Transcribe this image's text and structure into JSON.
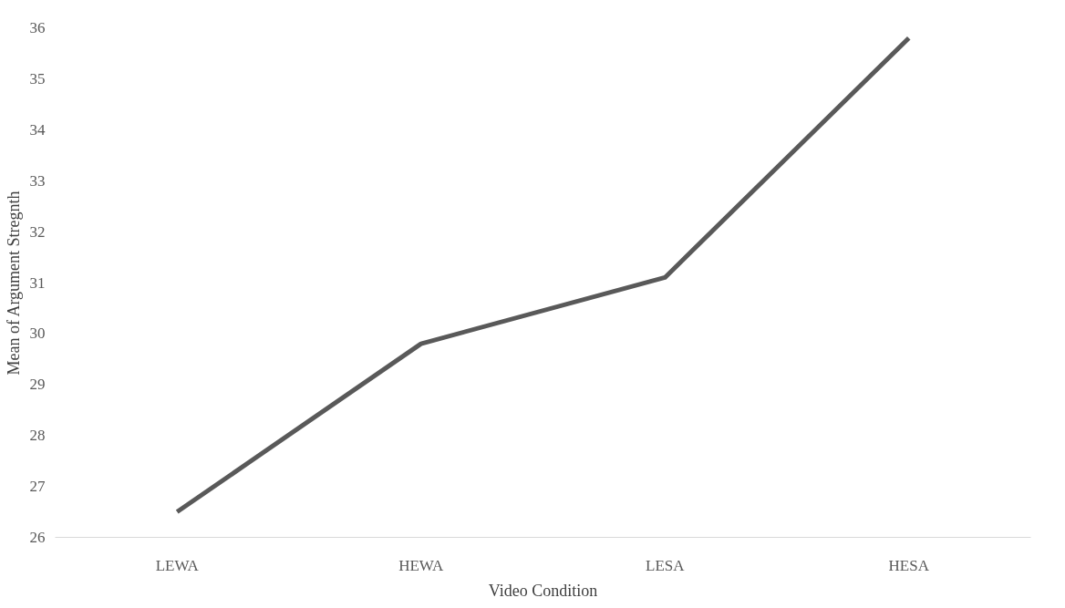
{
  "chart_data": {
    "type": "line",
    "xlabel": "Video Condition",
    "ylabel": "Mean of Argument Stregnth",
    "categories": [
      "LEWA",
      "HEWA",
      "LESA",
      "HESA"
    ],
    "series": [
      {
        "color": "#595959",
        "values": [
          26.5,
          29.8,
          31.1,
          35.8
        ]
      }
    ],
    "ylim": [
      26,
      36
    ],
    "yticks": [
      26,
      27,
      28,
      29,
      30,
      31,
      32,
      33,
      34,
      35,
      36
    ],
    "grid": false,
    "marker": "none",
    "line_style": "solid"
  }
}
